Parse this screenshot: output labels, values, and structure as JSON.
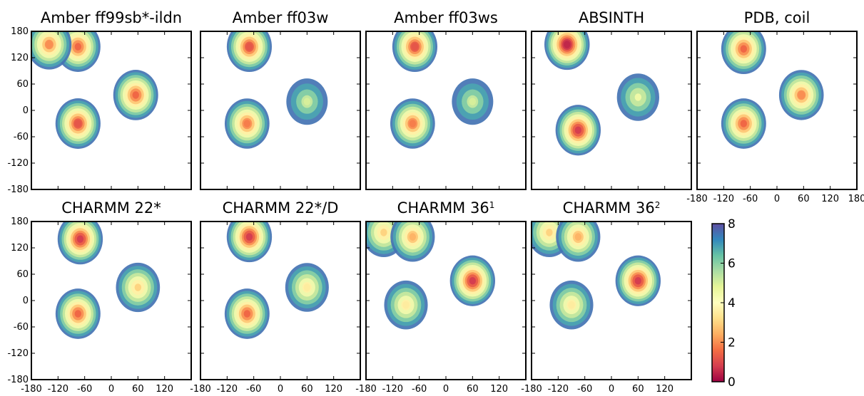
{
  "colors": {
    "colormap": [
      "#9e0142",
      "#d53e4f",
      "#f46d43",
      "#fdae61",
      "#fee08b",
      "#ffffbf",
      "#e6f598",
      "#abdda4",
      "#66c2a5",
      "#3288bd",
      "#5e4fa2"
    ],
    "background": "#ffffff",
    "pdb_marker": "#a9a9a9"
  },
  "chart_data": [
    {
      "type": "heatmap",
      "title": "Amber ff99sb*-ildn",
      "xlim": [
        -180,
        180
      ],
      "ylim": [
        -180,
        180
      ],
      "xticks": [
        "-180",
        "-120",
        "-60",
        "0",
        "60",
        "120"
      ],
      "xticks_visible": false,
      "yticks": [
        "180",
        "120",
        "60",
        "0",
        "-60",
        "-120",
        "-180"
      ],
      "yticks_visible": true,
      "peaks": [
        {
          "phi": -75,
          "psi": 145,
          "value": 1.5
        },
        {
          "phi": -140,
          "psi": 150,
          "value": 2.0
        },
        {
          "phi": -75,
          "psi": -30,
          "value": 1.2
        },
        {
          "phi": 55,
          "psi": 35,
          "value": 1.5
        }
      ]
    },
    {
      "type": "heatmap",
      "title": "Amber ff03w",
      "xlim": [
        -180,
        180
      ],
      "ylim": [
        -180,
        180
      ],
      "xticks": [
        "-180",
        "-120",
        "-60",
        "0",
        "60",
        "120"
      ],
      "xticks_visible": false,
      "yticks": [
        "180",
        "120",
        "60",
        "0",
        "-60",
        "-120",
        "-180"
      ],
      "yticks_visible": false,
      "peaks": [
        {
          "phi": -70,
          "psi": 145,
          "value": 1.2
        },
        {
          "phi": -75,
          "psi": -30,
          "value": 1.8
        },
        {
          "phi": 60,
          "psi": 20,
          "value": 5.0
        }
      ]
    },
    {
      "type": "heatmap",
      "title": "Amber ff03ws",
      "xlim": [
        -180,
        180
      ],
      "ylim": [
        -180,
        180
      ],
      "xticks": [
        "-180",
        "-120",
        "-60",
        "0",
        "60",
        "120"
      ],
      "xticks_visible": false,
      "yticks": [
        "180",
        "120",
        "60",
        "0",
        "-60",
        "-120",
        "-180"
      ],
      "yticks_visible": false,
      "peaks": [
        {
          "phi": -70,
          "psi": 145,
          "value": 1.2
        },
        {
          "phi": -75,
          "psi": -30,
          "value": 1.8
        },
        {
          "phi": 60,
          "psi": 20,
          "value": 5.0
        }
      ]
    },
    {
      "type": "heatmap",
      "title": "ABSINTH",
      "xlim": [
        -180,
        180
      ],
      "ylim": [
        -180,
        180
      ],
      "xticks": [
        "-180",
        "-120",
        "-60",
        "0",
        "60",
        "120"
      ],
      "xticks_visible": false,
      "yticks": [
        "180",
        "120",
        "60",
        "0",
        "-60",
        "-120",
        "-180"
      ],
      "yticks_visible": false,
      "peaks": [
        {
          "phi": -100,
          "psi": 150,
          "value": 0.5
        },
        {
          "phi": -75,
          "psi": -45,
          "value": 0.8
        },
        {
          "phi": 60,
          "psi": 30,
          "value": 4.5
        }
      ]
    },
    {
      "type": "heatmap",
      "title": "PDB, coil",
      "xlim": [
        -180,
        180
      ],
      "ylim": [
        -180,
        180
      ],
      "xticks": [
        "-180",
        "-120",
        "-60",
        "0",
        "60",
        "120",
        "180"
      ],
      "xticks_visible": true,
      "yticks": [
        "180",
        "120",
        "60",
        "0",
        "-60",
        "-120",
        "-180"
      ],
      "yticks_visible": false,
      "peaks": [
        {
          "phi": -75,
          "psi": 140,
          "value": 1.5
        },
        {
          "phi": -75,
          "psi": -30,
          "value": 1.5
        },
        {
          "phi": 55,
          "psi": 35,
          "value": 2.0
        }
      ]
    },
    {
      "type": "heatmap",
      "title": "CHARMM 22*",
      "xlim": [
        -180,
        180
      ],
      "ylim": [
        -180,
        180
      ],
      "xticks": [
        "-180",
        "-120",
        "-60",
        "0",
        "60",
        "120"
      ],
      "xticks_visible": true,
      "yticks": [
        "180",
        "120",
        "60",
        "0",
        "-60",
        "-120",
        "-180"
      ],
      "yticks_visible": true,
      "peaks": [
        {
          "phi": -70,
          "psi": 140,
          "value": 0.8
        },
        {
          "phi": -75,
          "psi": -30,
          "value": 1.5
        },
        {
          "phi": 60,
          "psi": 30,
          "value": 3.0
        }
      ]
    },
    {
      "type": "heatmap",
      "title": "CHARMM 22*/D",
      "xlim": [
        -180,
        180
      ],
      "ylim": [
        -180,
        180
      ],
      "xticks": [
        "-180",
        "-120",
        "-60",
        "0",
        "60",
        "120"
      ],
      "xticks_visible": true,
      "yticks": [
        "180",
        "120",
        "60",
        "0",
        "-60",
        "-120",
        "-180"
      ],
      "yticks_visible": false,
      "peaks": [
        {
          "phi": -70,
          "psi": 145,
          "value": 0.8
        },
        {
          "phi": -75,
          "psi": -30,
          "value": 1.5
        },
        {
          "phi": 60,
          "psi": 30,
          "value": 3.5
        }
      ]
    },
    {
      "type": "heatmap",
      "title": "CHARMM 36",
      "title_superscript": "1",
      "xlim": [
        -180,
        180
      ],
      "ylim": [
        -180,
        180
      ],
      "xticks": [
        "-180",
        "-120",
        "-60",
        "0",
        "60",
        "120"
      ],
      "xticks_visible": true,
      "yticks": [
        "180",
        "120",
        "60",
        "0",
        "-60",
        "-120",
        "-180"
      ],
      "yticks_visible": false,
      "peaks": [
        {
          "phi": -140,
          "psi": 155,
          "value": 3.0
        },
        {
          "phi": -75,
          "psi": 145,
          "value": 2.5
        },
        {
          "phi": -90,
          "psi": -10,
          "value": 3.5
        },
        {
          "phi": 60,
          "psi": 45,
          "value": 0.8
        }
      ]
    },
    {
      "type": "heatmap",
      "title": "CHARMM 36",
      "title_superscript": "2",
      "xlim": [
        -180,
        180
      ],
      "ylim": [
        -180,
        180
      ],
      "xticks": [
        "-180",
        "-120",
        "-60",
        "0",
        "60",
        "120"
      ],
      "xticks_visible": true,
      "yticks": [
        "180",
        "120",
        "60",
        "0",
        "-60",
        "-120",
        "-180"
      ],
      "yticks_visible": false,
      "peaks": [
        {
          "phi": -140,
          "psi": 155,
          "value": 3.0
        },
        {
          "phi": -75,
          "psi": 145,
          "value": 2.5
        },
        {
          "phi": -90,
          "psi": -10,
          "value": 3.5
        },
        {
          "phi": 60,
          "psi": 45,
          "value": 0.8
        }
      ]
    }
  ],
  "colorbar": {
    "min": 0,
    "max": 8,
    "ticks": [
      "0",
      "2",
      "4",
      "6",
      "8"
    ]
  }
}
